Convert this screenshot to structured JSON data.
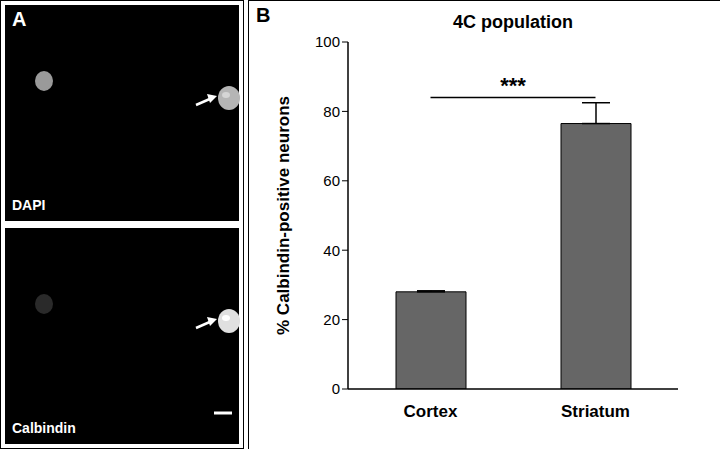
{
  "panel_a": {
    "panel_label": "A",
    "images": [
      "DAPI",
      "Calbindin"
    ]
  },
  "chart_data": {
    "type": "bar",
    "panel_label": "B",
    "title": "4C population",
    "y_label": "% Calbindin-positive neurons",
    "categories": [
      "Cortex",
      "Striatum"
    ],
    "values": [
      28,
      76.5
    ],
    "errors": [
      0.3,
      6
    ],
    "color": "#666666",
    "ylim": [
      0,
      100
    ],
    "yticks": [
      0,
      20,
      40,
      60,
      80,
      100
    ],
    "grid": false,
    "annotations": [
      {
        "text": "***",
        "y": 84,
        "from": "Cortex",
        "to": "Striatum"
      }
    ]
  }
}
